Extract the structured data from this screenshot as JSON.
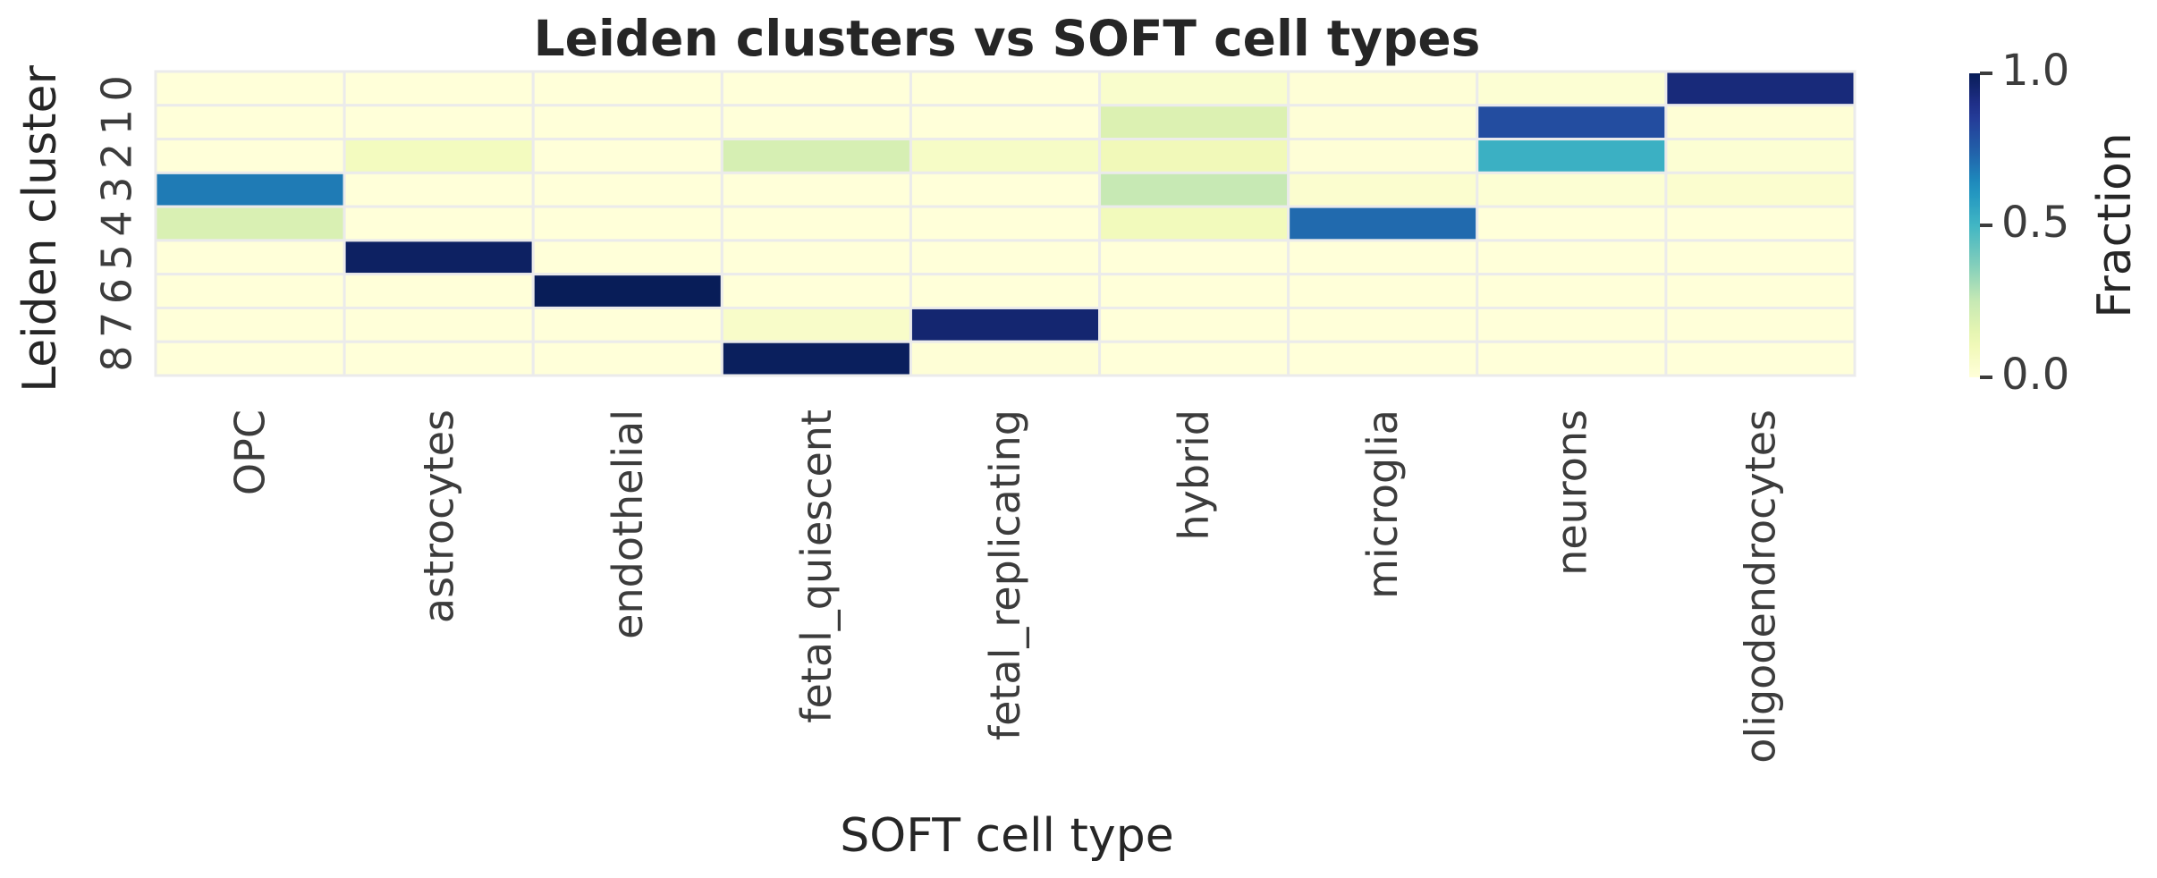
{
  "chart_data": {
    "type": "heatmap",
    "title": "Leiden clusters vs SOFT cell types",
    "xlabel": "SOFT cell type",
    "ylabel": "Leiden cluster",
    "columns": [
      "OPC",
      "astrocytes",
      "endothelial",
      "fetal_quiescent",
      "fetal_replicating",
      "hybrid",
      "microglia",
      "neurons",
      "oligodendrocytes"
    ],
    "rows": [
      "0",
      "1",
      "2",
      "3",
      "4",
      "5",
      "6",
      "7",
      "8"
    ],
    "values": [
      [
        0.0,
        0.0,
        0.0,
        0.0,
        0.0,
        0.04,
        0.01,
        0.02,
        0.93
      ],
      [
        0.0,
        0.0,
        0.0,
        0.0,
        0.0,
        0.18,
        0.01,
        0.8,
        0.01
      ],
      [
        0.0,
        0.08,
        0.0,
        0.2,
        0.06,
        0.1,
        0.01,
        0.52,
        0.02
      ],
      [
        0.68,
        0.0,
        0.0,
        0.0,
        0.0,
        0.25,
        0.03,
        0.02,
        0.03
      ],
      [
        0.19,
        0.0,
        0.0,
        0.0,
        0.0,
        0.09,
        0.72,
        0.0,
        0.0
      ],
      [
        0.0,
        0.98,
        0.0,
        0.0,
        0.0,
        0.0,
        0.0,
        0.0,
        0.0
      ],
      [
        0.0,
        0.0,
        1.0,
        0.0,
        0.0,
        0.0,
        0.0,
        0.0,
        0.0
      ],
      [
        0.0,
        0.0,
        0.0,
        0.05,
        0.95,
        0.0,
        0.0,
        0.0,
        0.0
      ],
      [
        0.0,
        0.0,
        0.0,
        0.99,
        0.01,
        0.0,
        0.0,
        0.0,
        0.0
      ]
    ],
    "colormap": "YlGnBu",
    "value_range": [
      0.0,
      1.0
    ],
    "colorbar": {
      "label": "Fraction",
      "ticks": [
        0.0,
        0.5,
        1.0
      ],
      "tick_labels": [
        "0.0",
        "0.5",
        "1.0"
      ]
    },
    "grid": true
  }
}
